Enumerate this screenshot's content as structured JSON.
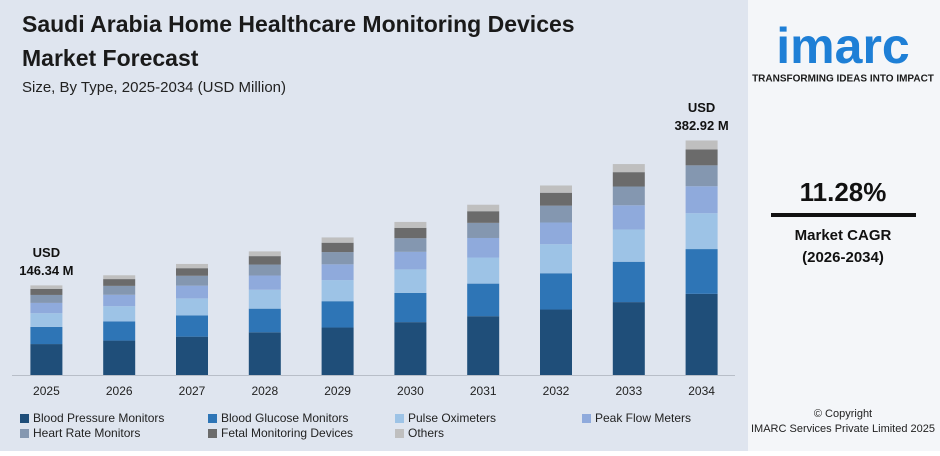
{
  "chart_data": {
    "type": "stacked_bar",
    "title": "Saudi Arabia Home Healthcare Monitoring Devices",
    "title_line2": "Market Forecast",
    "subtitle": "Size, By Type, 2025-2034 (USD Million)",
    "categories": [
      "2025",
      "2026",
      "2027",
      "2028",
      "2029",
      "2030",
      "2031",
      "2032",
      "2033",
      "2034"
    ],
    "series": [
      {
        "name": "Blood Pressure Monitors",
        "color": "#1f4e79",
        "values": [
          50.5,
          56.2,
          62.6,
          69.7,
          77.5,
          86.3,
          96.0,
          106.9,
          119.0,
          132.5
        ]
      },
      {
        "name": "Blood Glucose Monitors",
        "color": "#2e75b6",
        "values": [
          28.0,
          31.2,
          34.7,
          38.6,
          43.0,
          47.8,
          53.2,
          59.2,
          65.9,
          73.1
        ]
      },
      {
        "name": "Pulse Oximeters",
        "color": "#9dc3e6",
        "values": [
          22.4,
          24.9,
          27.8,
          30.9,
          34.4,
          38.3,
          42.6,
          47.4,
          52.7,
          58.6
        ]
      },
      {
        "name": "Peak Flow Meters",
        "color": "#8faadc",
        "values": [
          16.8,
          18.7,
          20.8,
          23.2,
          25.8,
          28.7,
          31.9,
          35.5,
          39.5,
          44.0
        ]
      },
      {
        "name": "Heart Rate Monitors",
        "color": "#8497b0",
        "values": [
          13.0,
          14.5,
          16.1,
          17.9,
          20.0,
          22.2,
          24.7,
          27.5,
          30.6,
          34.1
        ]
      },
      {
        "name": "Fetal Monitoring Devices",
        "color": "#6b6b6b",
        "values": [
          10.0,
          11.1,
          12.4,
          13.8,
          15.3,
          17.0,
          19.0,
          21.1,
          23.5,
          26.0
        ]
      },
      {
        "name": "Others",
        "color": "#bfbfbf",
        "values": [
          5.6,
          6.2,
          6.9,
          7.7,
          8.6,
          9.6,
          10.6,
          11.8,
          13.2,
          14.6
        ]
      }
    ],
    "annotations": [
      {
        "category": "2025",
        "lines": [
          "USD",
          "146.34 M"
        ],
        "value": 146.34
      },
      {
        "category": "2034",
        "lines": [
          "USD",
          "382.92 M"
        ],
        "value": 382.92
      }
    ],
    "ylim": [
      0,
      400
    ]
  },
  "sidebar": {
    "logo": "imarc",
    "tagline": "TRANSFORMING IDEAS INTO IMPACT",
    "cagr": "11.28%",
    "cagr_label": "Market CAGR",
    "cagr_period": "(2026-2034)",
    "copyright": "© Copyright",
    "company": "IMARC Services Private Limited 2025"
  }
}
